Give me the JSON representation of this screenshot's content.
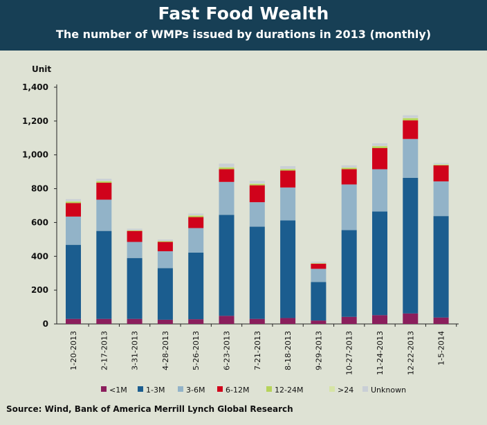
{
  "header": {
    "title": "Fast Food Wealth",
    "subtitle": "The number of WMPs issued by durations in 2013 (monthly)"
  },
  "footer": {
    "source": "Source: Wind, Bank of America Merrill Lynch Global Research"
  },
  "chart_data": {
    "type": "bar",
    "stacked": true,
    "ylabel": "Unit",
    "ylim": [
      0,
      1400
    ],
    "yticks": [
      0,
      200,
      400,
      600,
      800,
      1000,
      1200,
      1400
    ],
    "ytick_labels": [
      "0",
      "200",
      "400",
      "600",
      "800",
      "1,000",
      "1,200",
      "1,400"
    ],
    "grid": false,
    "legend_position": "bottom",
    "categories": [
      "1-20-2013",
      "2-17-2013",
      "3-31-2013",
      "4-28-2013",
      "5-26-2013",
      "6-23-2013",
      "7-21-2013",
      "8-18-2013",
      "9-29-2013",
      "10-27-2013",
      "11-24-2013",
      "12-22-2013",
      "1-5-2014"
    ],
    "series": [
      {
        "name": "<1M",
        "color": "#8b1e5c",
        "values": [
          30,
          30,
          30,
          25,
          28,
          48,
          30,
          35,
          20,
          42,
          52,
          62,
          38
        ]
      },
      {
        "name": "1-3M",
        "color": "#1b5d8f",
        "values": [
          438,
          520,
          360,
          305,
          394,
          597,
          545,
          577,
          228,
          513,
          613,
          802,
          600
        ]
      },
      {
        "name": "3-6M",
        "color": "#92b3c8",
        "values": [
          167,
          185,
          95,
          100,
          145,
          195,
          145,
          195,
          78,
          270,
          250,
          230,
          205
        ]
      },
      {
        "name": "6-12M",
        "color": "#d0021b",
        "values": [
          80,
          100,
          65,
          55,
          65,
          75,
          100,
          100,
          30,
          90,
          125,
          110,
          95
        ]
      },
      {
        "name": "12-24M",
        "color": "#b6d35a",
        "values": [
          8,
          8,
          3,
          4,
          8,
          10,
          8,
          8,
          2,
          8,
          10,
          12,
          4
        ]
      },
      {
        "name": ">24",
        "color": "#d6e4a6",
        "values": [
          3,
          3,
          2,
          2,
          3,
          3,
          3,
          3,
          2,
          3,
          3,
          3,
          2
        ]
      },
      {
        "name": "Unknown",
        "color": "#c9cfd6",
        "values": [
          12,
          12,
          8,
          8,
          10,
          20,
          15,
          15,
          8,
          12,
          15,
          15,
          8
        ]
      }
    ]
  }
}
